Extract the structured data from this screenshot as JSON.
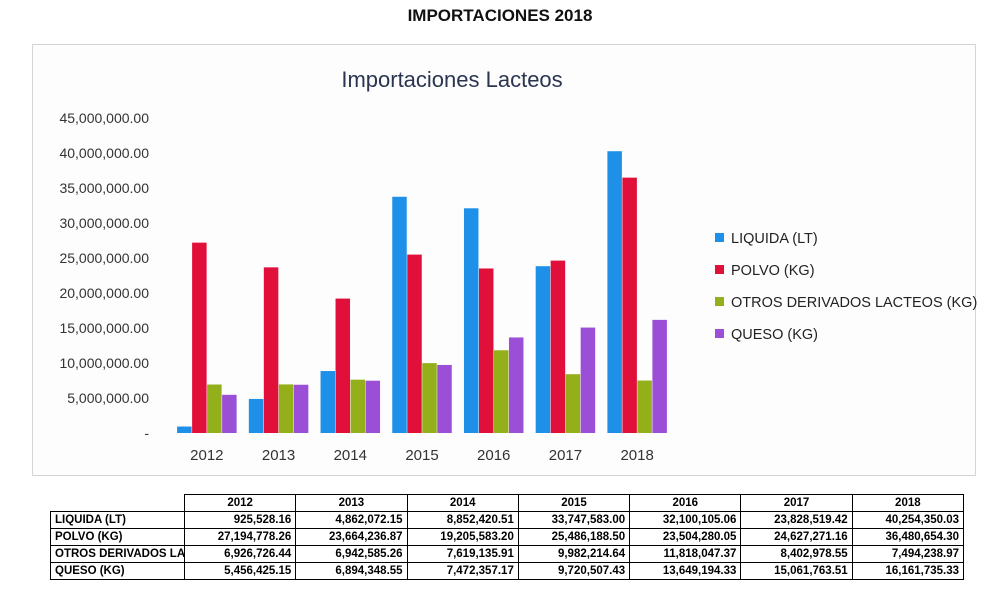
{
  "page_title": "IMPORTACIONES 2018",
  "chart_data": {
    "type": "bar",
    "title": "Importaciones Lacteos",
    "categories": [
      "2012",
      "2013",
      "2014",
      "2015",
      "2016",
      "2017",
      "2018"
    ],
    "ylim": [
      0,
      45000000
    ],
    "yticks": [
      "-",
      "5,000,000.00",
      "10,000,000.00",
      "15,000,000.00",
      "20,000,000.00",
      "25,000,000.00",
      "30,000,000.00",
      "35,000,000.00",
      "40,000,000.00",
      "45,000,000.00"
    ],
    "legend_position": "right",
    "grid": false,
    "series": [
      {
        "name": "LIQUIDA (LT)",
        "color": "#1e90e8",
        "values": [
          925528.16,
          4862072.15,
          8852420.51,
          33747583.0,
          32100105.06,
          23828519.42,
          40254350.03
        ]
      },
      {
        "name": "POLVO (KG)",
        "color": "#e0103a",
        "values": [
          27194778.26,
          23664236.87,
          19205583.2,
          25486188.5,
          23504280.05,
          24627271.16,
          36480654.3
        ]
      },
      {
        "name": "OTROS DERIVADOS LACTEOS (KG)",
        "color": "#93b01a",
        "values": [
          6926726.44,
          6942585.26,
          7619135.91,
          9982214.64,
          11818047.37,
          8402978.55,
          7494238.97
        ]
      },
      {
        "name": "QUESO (KG)",
        "color": "#9b4fd6",
        "values": [
          5456425.15,
          6894348.55,
          7472357.17,
          9720507.43,
          13649194.33,
          15061763.51,
          16161735.33
        ]
      }
    ]
  },
  "table": {
    "columns": [
      "2012",
      "2013",
      "2014",
      "2015",
      "2016",
      "2017",
      "2018"
    ],
    "rows": [
      {
        "label": "LIQUIDA (LT)",
        "cells": [
          "925,528.16",
          "4,862,072.15",
          "8,852,420.51",
          "33,747,583.00",
          "32,100,105.06",
          "23,828,519.42",
          "40,254,350.03"
        ]
      },
      {
        "label": "POLVO (KG)",
        "cells": [
          "27,194,778.26",
          "23,664,236.87",
          "19,205,583.20",
          "25,486,188.50",
          "23,504,280.05",
          "24,627,271.16",
          "36,480,654.30"
        ]
      },
      {
        "label": "OTROS DERIVADOS LAC",
        "cells": [
          "6,926,726.44",
          "6,942,585.26",
          "7,619,135.91",
          "9,982,214.64",
          "11,818,047.37",
          "8,402,978.55",
          "7,494,238.97"
        ]
      },
      {
        "label": "QUESO (KG)",
        "cells": [
          "5,456,425.15",
          "6,894,348.55",
          "7,472,357.17",
          "9,720,507.43",
          "13,649,194.33",
          "15,061,763.51",
          "16,161,735.33"
        ]
      }
    ]
  }
}
